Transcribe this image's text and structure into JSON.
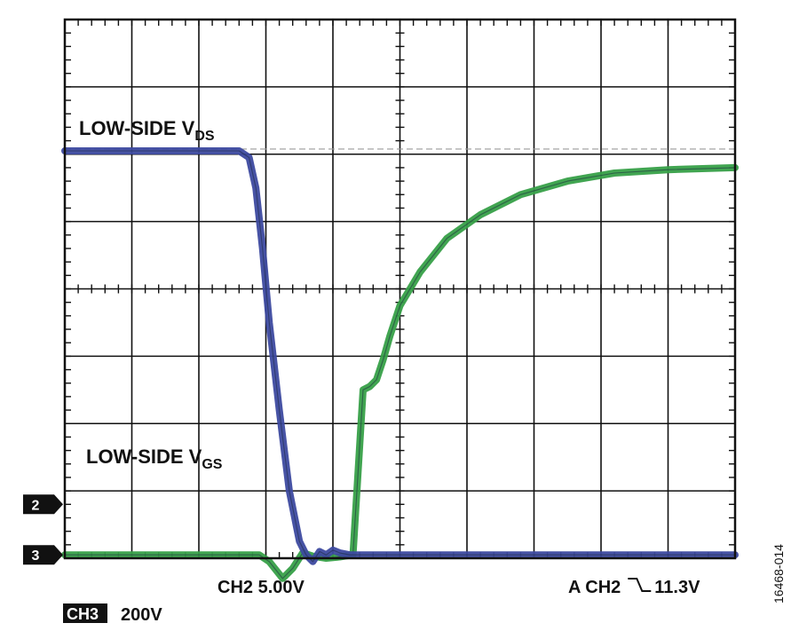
{
  "chart_data": {
    "type": "line",
    "title": "",
    "grid": true,
    "divisions": {
      "x": 10,
      "y": 8
    },
    "xlim": [
      0,
      10
    ],
    "ylim": [
      0,
      8
    ],
    "series": [
      {
        "name": "LOW-SIDE VDS",
        "label_main": "LOW-SIDE V",
        "label_sub": "DS",
        "channel": "CH3",
        "color": "#3d4aa0",
        "x": [
          0,
          2.6,
          2.75,
          2.85,
          2.95,
          3.05,
          3.2,
          3.35,
          3.5,
          3.6,
          3.7,
          3.8,
          3.9,
          4.0,
          4.1,
          4.25,
          4.4,
          4.5,
          5.0,
          6.0,
          7.0,
          8.0,
          9.0,
          10.0
        ],
        "y": [
          6.05,
          6.05,
          5.95,
          5.5,
          4.6,
          3.5,
          2.2,
          1.0,
          0.25,
          0.05,
          -0.05,
          0.1,
          0.05,
          0.12,
          0.08,
          0.05,
          0.05,
          0.05,
          0.05,
          0.05,
          0.05,
          0.05,
          0.05,
          0.05
        ]
      },
      {
        "name": "LOW-SIDE VGS",
        "label_main": "LOW-SIDE V",
        "label_sub": "GS",
        "channel": "CH2",
        "color": "#37a048",
        "x": [
          0,
          2.9,
          3.05,
          3.25,
          3.4,
          3.55,
          3.7,
          3.9,
          4.1,
          4.3,
          4.45,
          4.55,
          4.65,
          4.75,
          4.85,
          5.0,
          5.3,
          5.7,
          6.2,
          6.8,
          7.5,
          8.2,
          9.0,
          10.0
        ],
        "y": [
          0.05,
          0.05,
          -0.05,
          -0.3,
          -0.15,
          0.08,
          0.03,
          0.0,
          0.02,
          0.05,
          2.5,
          2.55,
          2.65,
          2.95,
          3.3,
          3.75,
          4.25,
          4.75,
          5.1,
          5.4,
          5.6,
          5.72,
          5.77,
          5.8
        ]
      }
    ],
    "markers": [
      {
        "label": "2",
        "y": 0.8
      },
      {
        "label": "3",
        "y": 0.05
      }
    ],
    "reference_line_y": 6.05,
    "readouts": {
      "ch2": "CH2 5.00V",
      "trigger": "A  CH2",
      "trigger_symbol": "⌐",
      "trigger_level": "11.3V",
      "ch3_tag": "CH3",
      "ch3": "200V"
    },
    "figure_id": "16468-014"
  }
}
